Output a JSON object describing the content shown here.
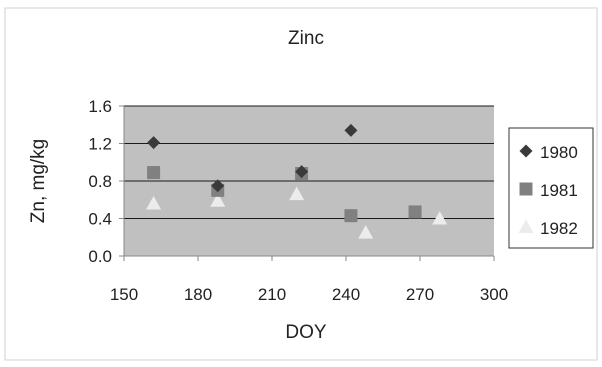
{
  "chart_data": {
    "type": "scatter",
    "title": "Zinc",
    "xlabel": "DOY",
    "ylabel": "Zn, mg/kg",
    "xlim": [
      150,
      300
    ],
    "ylim": [
      0.0,
      1.6
    ],
    "x_ticks": [
      "150",
      "180",
      "210",
      "240",
      "270",
      "300"
    ],
    "y_ticks": [
      "0.0",
      "0.4",
      "0.8",
      "1.2",
      "1.6"
    ],
    "grid": "horizontal",
    "legend_position": "right",
    "plot_background": "#c0c0c0",
    "series": [
      {
        "name": "1980",
        "marker": "diamond",
        "color": "#3a3a3a",
        "points": [
          {
            "x": 162,
            "y": 1.21
          },
          {
            "x": 188,
            "y": 0.75
          },
          {
            "x": 222,
            "y": 0.9
          },
          {
            "x": 242,
            "y": 1.34
          }
        ]
      },
      {
        "name": "1981",
        "marker": "square",
        "color": "#808080",
        "points": [
          {
            "x": 162,
            "y": 0.89
          },
          {
            "x": 188,
            "y": 0.7
          },
          {
            "x": 222,
            "y": 0.88
          },
          {
            "x": 242,
            "y": 0.43
          },
          {
            "x": 268,
            "y": 0.47
          }
        ]
      },
      {
        "name": "1982",
        "marker": "triangle",
        "color": "#ececec",
        "points": [
          {
            "x": 162,
            "y": 0.56
          },
          {
            "x": 188,
            "y": 0.59
          },
          {
            "x": 220,
            "y": 0.66
          },
          {
            "x": 248,
            "y": 0.25
          },
          {
            "x": 278,
            "y": 0.4
          }
        ]
      }
    ]
  }
}
